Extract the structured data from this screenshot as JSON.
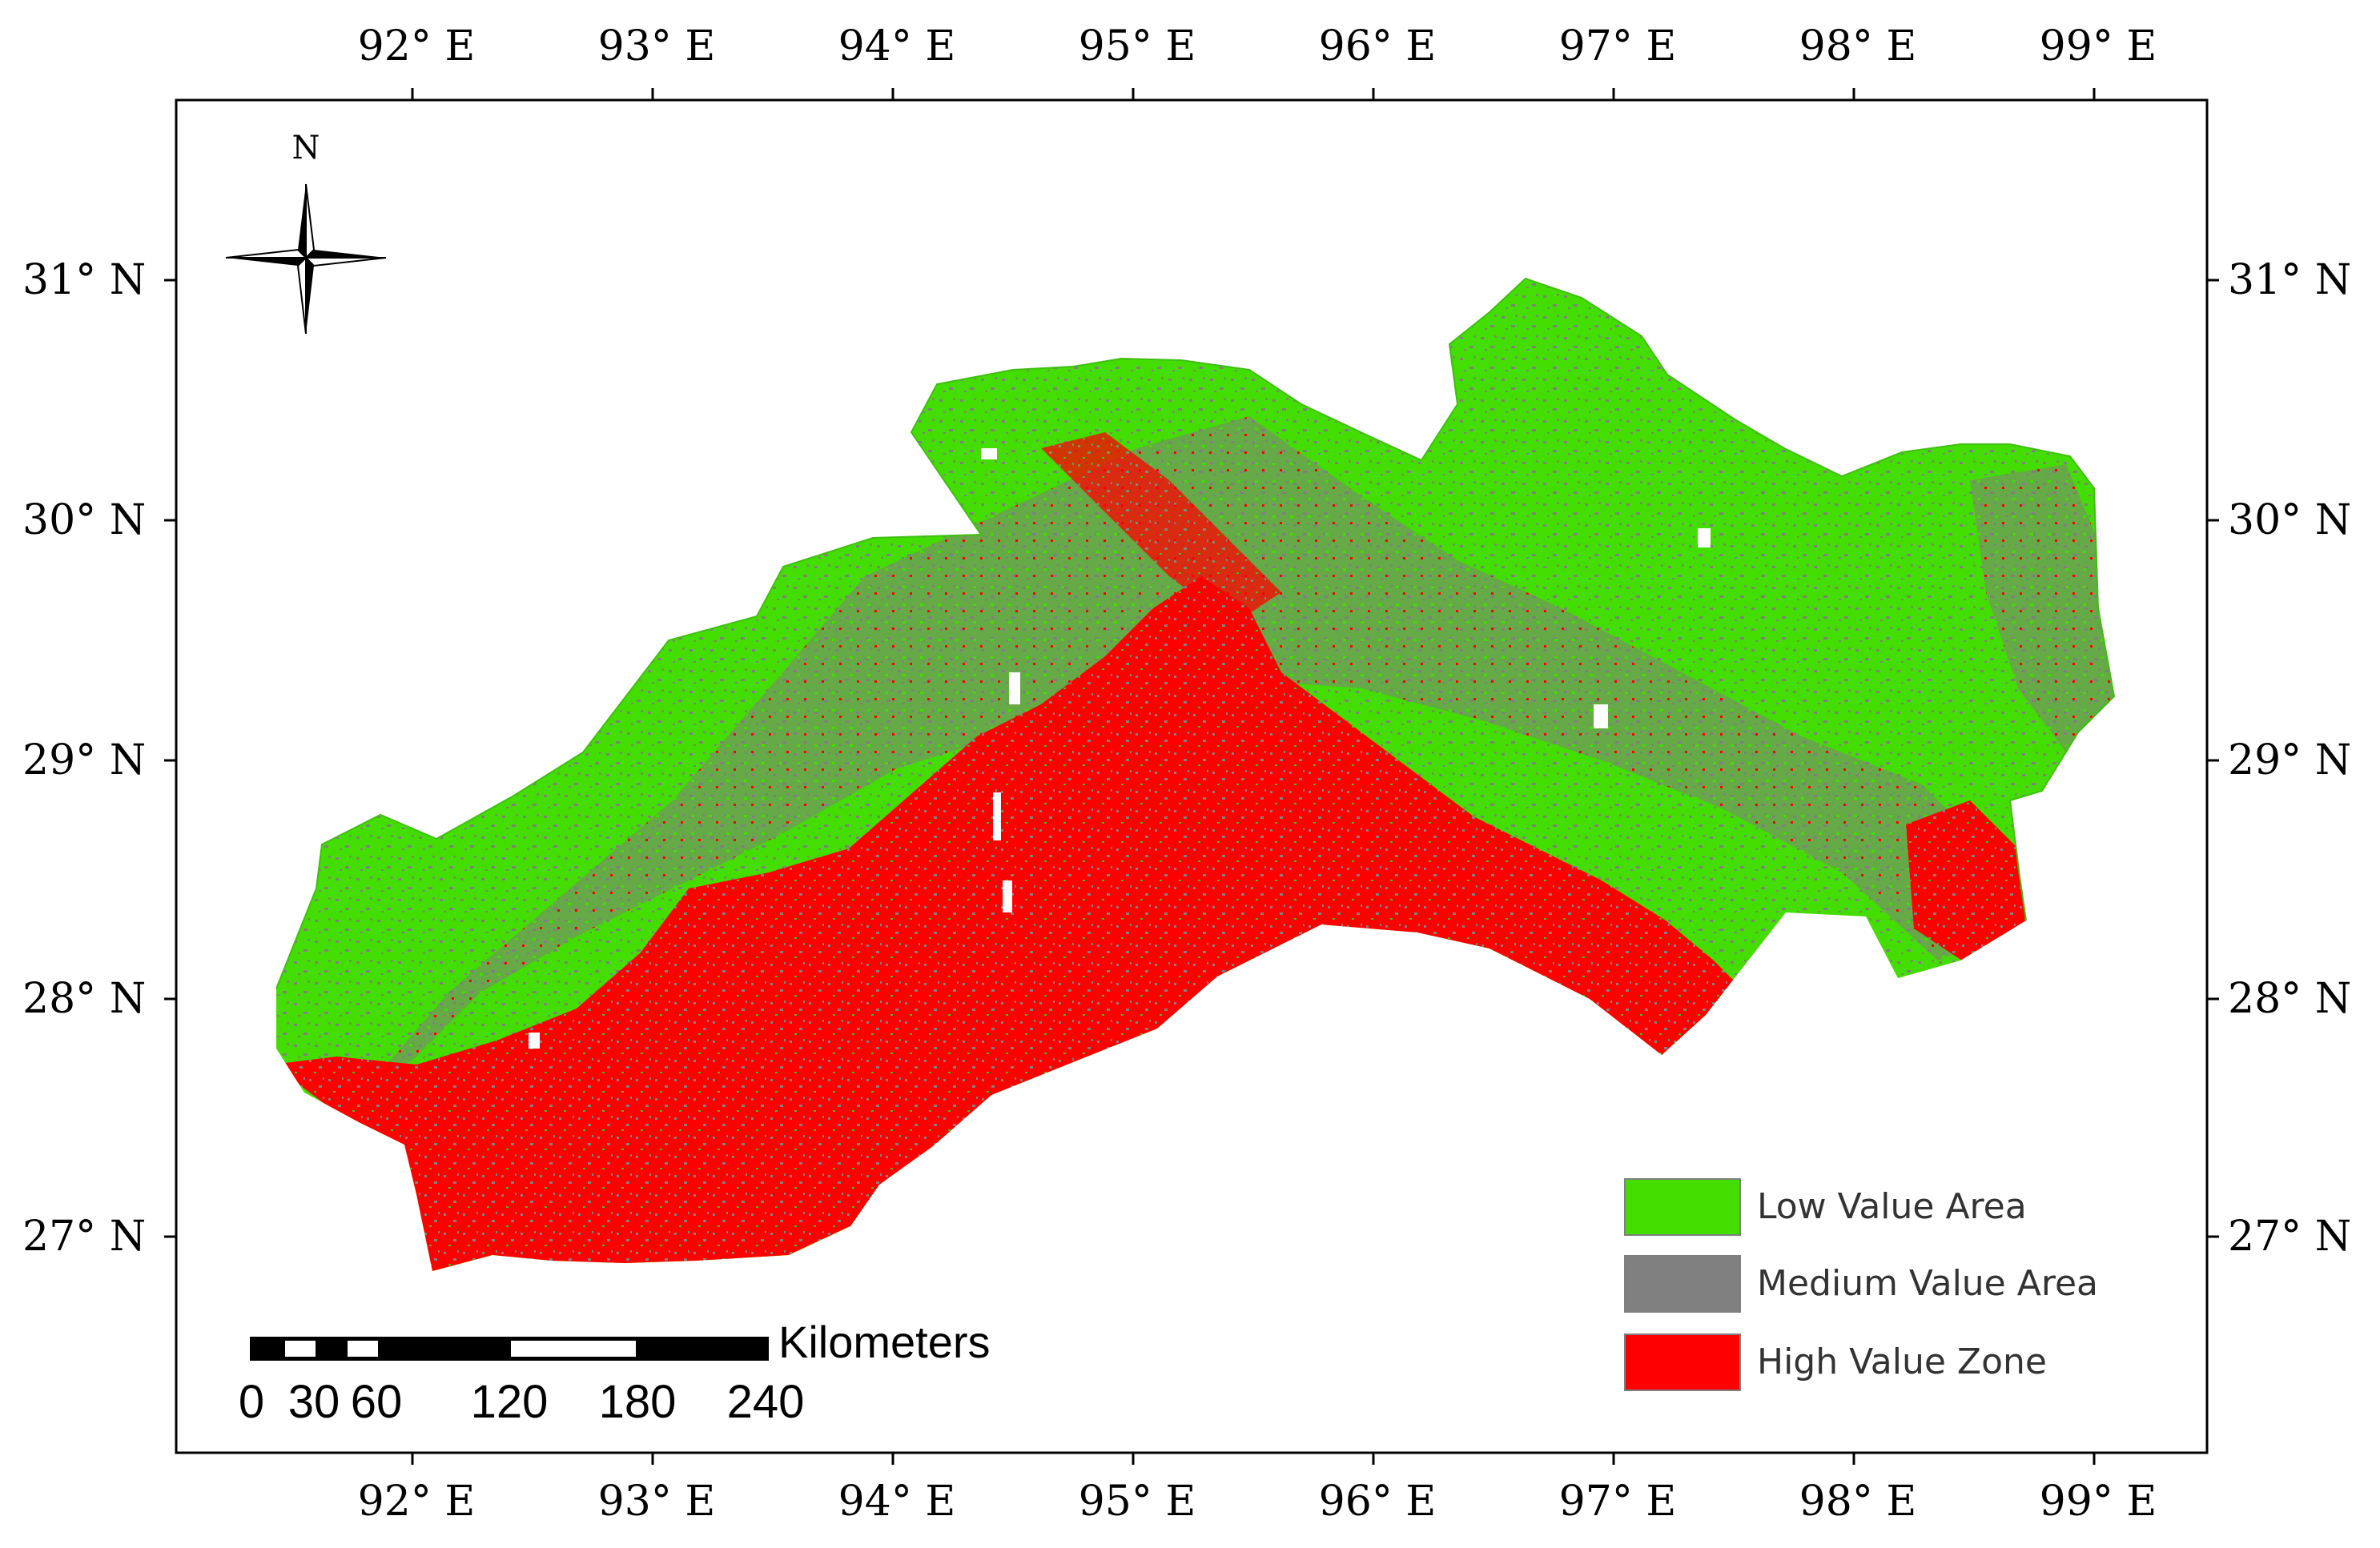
{
  "map": {
    "lon_ticks": [
      "92° E",
      "93° E",
      "94° E",
      "95° E",
      "96° E",
      "97° E",
      "98° E",
      "99° E"
    ],
    "lat_ticks": [
      "31° N",
      "30° N",
      "29° N",
      "28° N",
      "27° N"
    ],
    "north_arrow": {
      "letter": "N",
      "icon": "compass-rose-icon"
    },
    "legend": [
      {
        "label": "Low Value Area",
        "color": "#44dd00"
      },
      {
        "label": "Medium Value Area",
        "color": "#808080"
      },
      {
        "label": "High Value Zone",
        "color": "#ff0000"
      }
    ],
    "scale_bar": {
      "unit": "Kilometers",
      "labels": [
        "0",
        "30",
        "60",
        "120",
        "180",
        "240"
      ]
    }
  }
}
